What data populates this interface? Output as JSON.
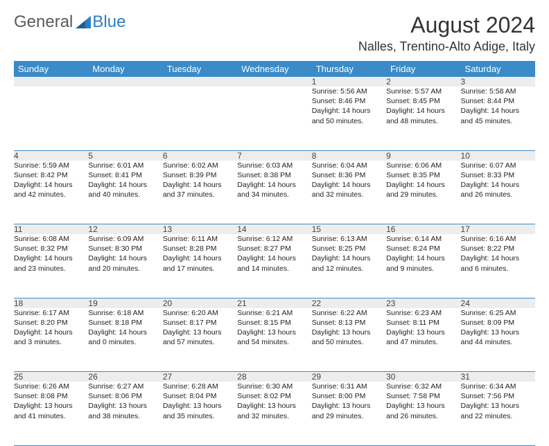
{
  "brand": {
    "word1": "General",
    "word2": "Blue",
    "logo_color": "#2a7ec5"
  },
  "title": "August 2024",
  "location": "Nalles, Trentino-Alto Adige, Italy",
  "header_bg": "#3b8bc8",
  "header_fg": "#ffffff",
  "daynum_bg": "#ededed",
  "row_border": "#3b8bc8",
  "weekdays": [
    "Sunday",
    "Monday",
    "Tuesday",
    "Wednesday",
    "Thursday",
    "Friday",
    "Saturday"
  ],
  "font_family": "Arial",
  "title_fontsize": 32,
  "location_fontsize": 18,
  "header_fontsize": 13,
  "cell_fontsize": 10.5,
  "days": {
    "1": {
      "sunrise": "5:56 AM",
      "sunset": "8:46 PM",
      "dlh": 14,
      "dlm": 50
    },
    "2": {
      "sunrise": "5:57 AM",
      "sunset": "8:45 PM",
      "dlh": 14,
      "dlm": 48
    },
    "3": {
      "sunrise": "5:58 AM",
      "sunset": "8:44 PM",
      "dlh": 14,
      "dlm": 45
    },
    "4": {
      "sunrise": "5:59 AM",
      "sunset": "8:42 PM",
      "dlh": 14,
      "dlm": 42
    },
    "5": {
      "sunrise": "6:01 AM",
      "sunset": "8:41 PM",
      "dlh": 14,
      "dlm": 40
    },
    "6": {
      "sunrise": "6:02 AM",
      "sunset": "8:39 PM",
      "dlh": 14,
      "dlm": 37
    },
    "7": {
      "sunrise": "6:03 AM",
      "sunset": "8:38 PM",
      "dlh": 14,
      "dlm": 34
    },
    "8": {
      "sunrise": "6:04 AM",
      "sunset": "8:36 PM",
      "dlh": 14,
      "dlm": 32
    },
    "9": {
      "sunrise": "6:06 AM",
      "sunset": "8:35 PM",
      "dlh": 14,
      "dlm": 29
    },
    "10": {
      "sunrise": "6:07 AM",
      "sunset": "8:33 PM",
      "dlh": 14,
      "dlm": 26
    },
    "11": {
      "sunrise": "6:08 AM",
      "sunset": "8:32 PM",
      "dlh": 14,
      "dlm": 23
    },
    "12": {
      "sunrise": "6:09 AM",
      "sunset": "8:30 PM",
      "dlh": 14,
      "dlm": 20
    },
    "13": {
      "sunrise": "6:11 AM",
      "sunset": "8:28 PM",
      "dlh": 14,
      "dlm": 17
    },
    "14": {
      "sunrise": "6:12 AM",
      "sunset": "8:27 PM",
      "dlh": 14,
      "dlm": 14
    },
    "15": {
      "sunrise": "6:13 AM",
      "sunset": "8:25 PM",
      "dlh": 14,
      "dlm": 12
    },
    "16": {
      "sunrise": "6:14 AM",
      "sunset": "8:24 PM",
      "dlh": 14,
      "dlm": 9
    },
    "17": {
      "sunrise": "6:16 AM",
      "sunset": "8:22 PM",
      "dlh": 14,
      "dlm": 6
    },
    "18": {
      "sunrise": "6:17 AM",
      "sunset": "8:20 PM",
      "dlh": 14,
      "dlm": 3
    },
    "19": {
      "sunrise": "6:18 AM",
      "sunset": "8:18 PM",
      "dlh": 14,
      "dlm": 0
    },
    "20": {
      "sunrise": "6:20 AM",
      "sunset": "8:17 PM",
      "dlh": 13,
      "dlm": 57
    },
    "21": {
      "sunrise": "6:21 AM",
      "sunset": "8:15 PM",
      "dlh": 13,
      "dlm": 54
    },
    "22": {
      "sunrise": "6:22 AM",
      "sunset": "8:13 PM",
      "dlh": 13,
      "dlm": 50
    },
    "23": {
      "sunrise": "6:23 AM",
      "sunset": "8:11 PM",
      "dlh": 13,
      "dlm": 47
    },
    "24": {
      "sunrise": "6:25 AM",
      "sunset": "8:09 PM",
      "dlh": 13,
      "dlm": 44
    },
    "25": {
      "sunrise": "6:26 AM",
      "sunset": "8:08 PM",
      "dlh": 13,
      "dlm": 41
    },
    "26": {
      "sunrise": "6:27 AM",
      "sunset": "8:06 PM",
      "dlh": 13,
      "dlm": 38
    },
    "27": {
      "sunrise": "6:28 AM",
      "sunset": "8:04 PM",
      "dlh": 13,
      "dlm": 35
    },
    "28": {
      "sunrise": "6:30 AM",
      "sunset": "8:02 PM",
      "dlh": 13,
      "dlm": 32
    },
    "29": {
      "sunrise": "6:31 AM",
      "sunset": "8:00 PM",
      "dlh": 13,
      "dlm": 29
    },
    "30": {
      "sunrise": "6:32 AM",
      "sunset": "7:58 PM",
      "dlh": 13,
      "dlm": 26
    },
    "31": {
      "sunrise": "6:34 AM",
      "sunset": "7:56 PM",
      "dlh": 13,
      "dlm": 22
    }
  },
  "weeks": [
    [
      null,
      null,
      null,
      null,
      "1",
      "2",
      "3"
    ],
    [
      "4",
      "5",
      "6",
      "7",
      "8",
      "9",
      "10"
    ],
    [
      "11",
      "12",
      "13",
      "14",
      "15",
      "16",
      "17"
    ],
    [
      "18",
      "19",
      "20",
      "21",
      "22",
      "23",
      "24"
    ],
    [
      "25",
      "26",
      "27",
      "28",
      "29",
      "30",
      "31"
    ]
  ],
  "labels": {
    "sunrise_prefix": "Sunrise: ",
    "sunset_prefix": "Sunset: ",
    "daylight_prefix": "Daylight: ",
    "hours_word": " hours",
    "and_word": "and ",
    "minutes_word": " minutes."
  }
}
